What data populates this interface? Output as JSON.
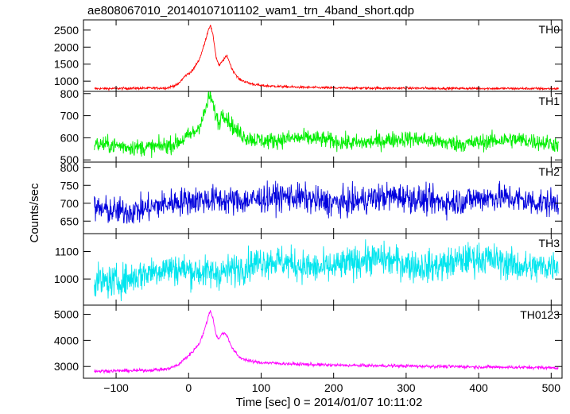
{
  "chart_data": {
    "type": "line",
    "title": "ae808067010_20140107101102_wam1_trn_4band_short.qdp",
    "xlabel": "Time [sec] 0 = 2014/01/07 10:11:02",
    "ylabel": "Counts/sec",
    "xlim": [
      -145,
      515
    ],
    "xticks": [
      -100,
      0,
      100,
      200,
      300,
      400,
      500
    ],
    "panels": [
      {
        "name": "TH0",
        "color": "#ff0000",
        "ylim": [
          700,
          2800
        ],
        "yticks": [
          1000,
          1500,
          2000,
          2500
        ],
        "baseline": 780,
        "noise": 25,
        "drift": 0,
        "x": [
          -130,
          -30,
          -15,
          -5,
          5,
          15,
          22,
          27,
          30,
          34,
          38,
          42,
          47,
          53,
          60,
          70,
          85,
          100,
          140,
          200,
          510
        ],
        "y": [
          780,
          800,
          900,
          1150,
          1300,
          1650,
          2100,
          2500,
          2650,
          2300,
          1700,
          1450,
          1600,
          1750,
          1350,
          1050,
          930,
          870,
          830,
          800,
          780
        ]
      },
      {
        "name": "TH1",
        "color": "#00ee00",
        "ylim": [
          490,
          810
        ],
        "yticks": [
          500,
          600,
          700,
          800
        ],
        "baseline": 560,
        "noise": 27,
        "drift": 20,
        "x": [
          -130,
          -20,
          -5,
          10,
          20,
          27,
          30,
          35,
          42,
          47,
          55,
          65,
          80,
          110,
          510
        ],
        "y": [
          560,
          570,
          590,
          620,
          680,
          760,
          790,
          720,
          660,
          720,
          680,
          640,
          610,
          590,
          580
        ]
      },
      {
        "name": "TH2",
        "color": "#0000dd",
        "ylim": [
          615,
          815
        ],
        "yticks": [
          650,
          700,
          750,
          800
        ],
        "baseline": 700,
        "noise": 28,
        "drift": 15,
        "x": [
          -130,
          -80,
          0,
          40,
          100,
          200,
          300,
          400,
          510
        ],
        "y": [
          680,
          685,
          700,
          715,
          712,
          708,
          712,
          710,
          708
        ]
      },
      {
        "name": "TH3",
        "color": "#00e5ee",
        "ylim": [
          905,
          1165
        ],
        "yticks": [
          1000,
          1100
        ],
        "baseline": 1030,
        "noise": 42,
        "drift": 30,
        "x": [
          -130,
          -80,
          0,
          100,
          200,
          300,
          400,
          510
        ],
        "y": [
          1000,
          1010,
          1030,
          1050,
          1055,
          1060,
          1060,
          1055
        ]
      },
      {
        "name": "TH0123",
        "color": "#ff00ff",
        "ylim": [
          2550,
          5350
        ],
        "yticks": [
          3000,
          4000,
          5000
        ],
        "baseline": 2900,
        "noise": 45,
        "drift": 0,
        "x": [
          -130,
          -60,
          -30,
          -15,
          -5,
          5,
          15,
          22,
          27,
          30,
          34,
          38,
          42,
          47,
          53,
          60,
          70,
          85,
          100,
          140,
          200,
          510
        ],
        "y": [
          2820,
          2850,
          2900,
          3050,
          3300,
          3550,
          3900,
          4400,
          4900,
          5150,
          4800,
          4200,
          4050,
          4300,
          4200,
          3700,
          3350,
          3200,
          3150,
          3100,
          3050,
          2950
        ]
      }
    ]
  }
}
